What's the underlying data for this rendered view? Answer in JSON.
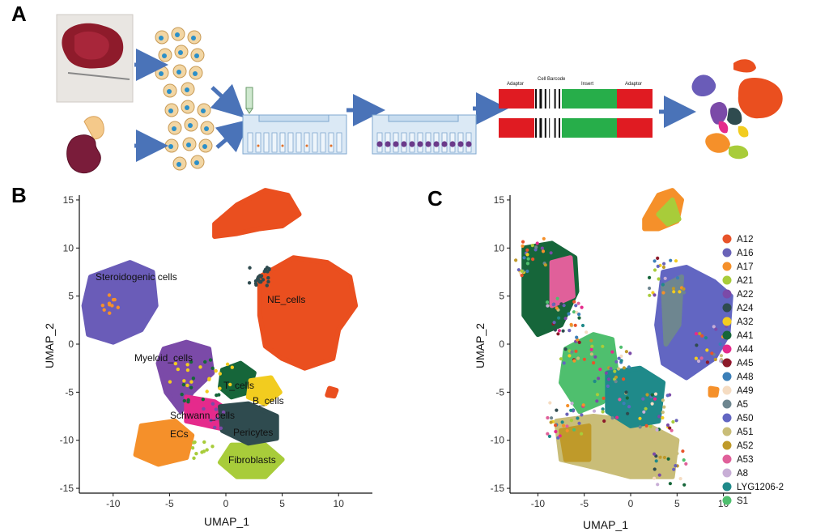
{
  "figure": {
    "panel_a": {
      "letter": "A",
      "seq_labels": [
        "Adaptor",
        "Cell Barcode",
        "Insert",
        "Adaptor"
      ]
    },
    "panel_b": {
      "letter": "B",
      "xlabel": "UMAP_1",
      "ylabel": "UMAP_2",
      "xticks": [
        -10,
        -5,
        0,
        5,
        10
      ],
      "yticks": [
        15,
        10,
        5,
        0,
        -5,
        -10,
        -15
      ],
      "xlim": [
        -13,
        13
      ],
      "ylim": [
        -15.5,
        15.5
      ],
      "cluster_labels": [
        "Steroidogenic cells",
        "NE_cells",
        "Myeloid_cells",
        "T_cells",
        "B_cells",
        "Schwann_cells",
        "Pericytes",
        "ECs",
        "Fibroblasts"
      ]
    },
    "panel_c": {
      "letter": "C",
      "xlabel": "UMAP_1",
      "ylabel": "UMAP_2",
      "xticks": [
        -10,
        -5,
        0,
        5,
        10
      ],
      "yticks": [
        15,
        10,
        5,
        0,
        -5,
        -10,
        -15
      ],
      "xlim": [
        -13,
        13
      ],
      "ylim": [
        -15.5,
        15.5
      ],
      "legend_position": "right",
      "legend": [
        {
          "name": "A12",
          "color": "#e8542a"
        },
        {
          "name": "A16",
          "color": "#6a63b8"
        },
        {
          "name": "A17",
          "color": "#f5902a"
        },
        {
          "name": "A21",
          "color": "#a8cc3a"
        },
        {
          "name": "A22",
          "color": "#7b4aa8"
        },
        {
          "name": "A24",
          "color": "#2f4b4f"
        },
        {
          "name": "A32",
          "color": "#f2cc1f"
        },
        {
          "name": "A41",
          "color": "#16663a"
        },
        {
          "name": "A44",
          "color": "#e52a8c"
        },
        {
          "name": "A45",
          "color": "#8c1a2a"
        },
        {
          "name": "A48",
          "color": "#3b7fb8"
        },
        {
          "name": "A49",
          "color": "#f5dcc2"
        },
        {
          "name": "A5",
          "color": "#6e8690"
        },
        {
          "name": "A50",
          "color": "#6266c2"
        },
        {
          "name": "A51",
          "color": "#c9bd78"
        },
        {
          "name": "A52",
          "color": "#bf9a2a"
        },
        {
          "name": "A53",
          "color": "#e0609a"
        },
        {
          "name": "A8",
          "color": "#c8aed6"
        },
        {
          "name": "LYG1206-2",
          "color": "#1f8a8a"
        },
        {
          "name": "S1",
          "color": "#4fbf6e"
        }
      ]
    }
  },
  "colors": {
    "ne": "#ea4f1f",
    "steroid": "#6a5cb8",
    "myeloid": "#7b4aa8",
    "tcell": "#16663a",
    "bcell": "#f2cc1f",
    "schwann": "#e52a8c",
    "pericyte": "#2f4b4f",
    "ec": "#f5902a",
    "fibro": "#a8cc3a",
    "arrow": "#4a73b8",
    "seq_red": "#e01b22",
    "seq_green": "#27ae4a",
    "chip": "#dbe9f5",
    "chip_edge": "#7fa7cf"
  }
}
